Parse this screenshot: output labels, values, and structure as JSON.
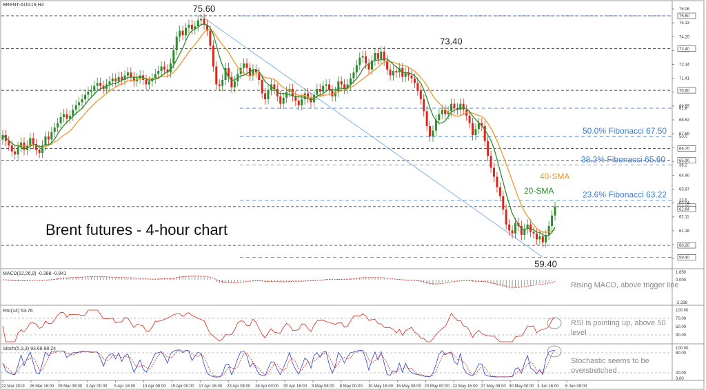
{
  "header": {
    "symbol": "BRENT-AUG19,H4"
  },
  "chart_data": [
    {
      "type": "candlestick",
      "title": "Brent futures - 4-hour chart",
      "y_axis_ticks": [
        "76.06",
        "75.13",
        "74.20",
        "73.27",
        "72.34",
        "71.41",
        "70.48",
        "69.55",
        "68.62",
        "67.69",
        "66.76",
        "65.83",
        "64.90",
        "63.97",
        "63.04",
        "62.11",
        "61.18",
        "60.25",
        "59.32"
      ],
      "ylim": [
        59.0,
        76.2
      ],
      "x_axis_ticks": [
        "22 Mar 2019",
        "26 Mar 16:00",
        "29 Mar 08:00",
        "3 Apr 00:00",
        "5 Apr 16:00",
        "10 Apr 08:00",
        "15 Apr 00:00",
        "17 Apr 16:00",
        "23 Apr 08:00",
        "26 Apr 00:00",
        "30 Apr 16:00",
        "3 May 08:00",
        "8 May 00:00",
        "10 May 16:00",
        "15 May 08:00",
        "20 May 00:00",
        "22 May 16:00",
        "27 May 08:00",
        "30 May 00:00",
        "3 Jun 16:00",
        "6 Jun 08:00"
      ],
      "price_tags": [
        "75.60",
        "73.40",
        "70.60",
        "66.70",
        "65.90",
        "62.80",
        "62.64",
        "60.20",
        "59.40"
      ],
      "peak_labels": [
        {
          "text": "75.60",
          "value": 75.6
        },
        {
          "text": "73.40",
          "value": 73.4
        },
        {
          "text": "59.40",
          "value": 59.4
        }
      ],
      "horizontal_levels": [
        75.6,
        73.4,
        70.6,
        66.7,
        65.9,
        62.8,
        60.2
      ],
      "fibonacci": [
        {
          "ratio": 1.0,
          "tag": "100.0",
          "value": 75.6
        },
        {
          "ratio": 0.618,
          "tag": "61.8",
          "value": 69.4
        },
        {
          "ratio": 0.5,
          "tag": "50.0",
          "value": 67.5,
          "label": "50.0% Fibonacci 67.50"
        },
        {
          "ratio": 0.382,
          "tag": "38.2",
          "value": 65.6,
          "label": "38.2% Fibonacci 65.60"
        },
        {
          "ratio": 0.236,
          "tag": "23.6",
          "value": 63.22,
          "label": "23.6% Fibonacci 63.22"
        },
        {
          "ratio": 0.0,
          "tag": "0.0",
          "value": 59.4
        }
      ],
      "series_labels": {
        "sma20": "20-SMA",
        "sma40": "40-SMA"
      },
      "colors": {
        "sma20": "#2e8b2e",
        "sma40": "#f0962a",
        "up": "#2e8b2e",
        "down": "#d9281a",
        "fib": "#3a7fd9",
        "trend": "#7fb3e6"
      },
      "closes": [
        67.6,
        67.2,
        66.9,
        66.5,
        66.3,
        66.8,
        67.1,
        66.6,
        66.9,
        67.4,
        67.0,
        66.6,
        66.4,
        66.9,
        67.5,
        67.3,
        67.8,
        68.1,
        68.4,
        68.8,
        69.0,
        68.7,
        68.9,
        69.3,
        69.6,
        69.8,
        70.0,
        70.3,
        70.5,
        70.6,
        70.9,
        71.1,
        70.9,
        70.7,
        71.0,
        71.2,
        71.4,
        71.2,
        71.5,
        71.3,
        71.6,
        71.8,
        71.5,
        71.2,
        71.4,
        71.6,
        71.3,
        71.0,
        71.2,
        71.4,
        71.7,
        71.9,
        72.2,
        72.0,
        71.8,
        72.4,
        73.3,
        74.2,
        74.6,
        74.3,
        74.8,
        75.0,
        74.7,
        74.9,
        75.3,
        75.4,
        75.0,
        74.6,
        73.6,
        72.2,
        71.0,
        70.9,
        71.3,
        72.1,
        71.5,
        70.8,
        71.2,
        71.7,
        72.1,
        72.4,
        72.1,
        71.6,
        72.0,
        71.8,
        71.3,
        70.4,
        70.0,
        70.6,
        71.0,
        70.7,
        70.2,
        69.7,
        70.1,
        70.5,
        70.7,
        70.2,
        69.9,
        69.6,
        70.0,
        70.4,
        70.1,
        69.8,
        70.3,
        70.7,
        70.5,
        70.9,
        71.0,
        70.6,
        70.2,
        70.5,
        71.2,
        71.0,
        70.7,
        71.0,
        71.4,
        71.8,
        72.3,
        72.8,
        72.9,
        72.4,
        72.0,
        72.6,
        73.1,
        72.7,
        73.2,
        72.6,
        72.0,
        71.6,
        71.9,
        71.8,
        72.1,
        71.5,
        71.8,
        71.6,
        71.4,
        71.1,
        70.6,
        70.0,
        69.2,
        68.2,
        67.5,
        67.9,
        68.6,
        69.0,
        69.3,
        69.0,
        69.2,
        69.7,
        69.4,
        69.3,
        69.7,
        69.3,
        68.9,
        68.4,
        67.6,
        68.0,
        68.4,
        68.2,
        67.2,
        66.2,
        65.4,
        64.8,
        64.1,
        63.5,
        62.6,
        61.6,
        61.2,
        61.0,
        61.7,
        61.5,
        60.9,
        61.3,
        61.6,
        61.1,
        61.0,
        60.6,
        60.8,
        60.4,
        60.9,
        61.5,
        62.2,
        62.8
      ]
    },
    {
      "type": "line",
      "indicator": "MACD(12,26,9) -0.388 -0.841",
      "y_axis_ticks": [
        "1.650",
        "0.000",
        "-2.338"
      ],
      "note": "Rising MACD, above trigger line"
    },
    {
      "type": "line",
      "indicator": "RSI(14) 53.76",
      "y_axis_ticks": [
        "100.00",
        "70.00",
        "50.00",
        "30.00"
      ],
      "note": "RSI is pointing up, above 50 level"
    },
    {
      "type": "line",
      "indicator": "Stoch(5,3,3) 93.68 88.24",
      "y_axis_ticks": [
        "100.00",
        "80.00",
        "20.00",
        "0.00"
      ],
      "note": "Stochastic seems to be overstretched"
    }
  ]
}
